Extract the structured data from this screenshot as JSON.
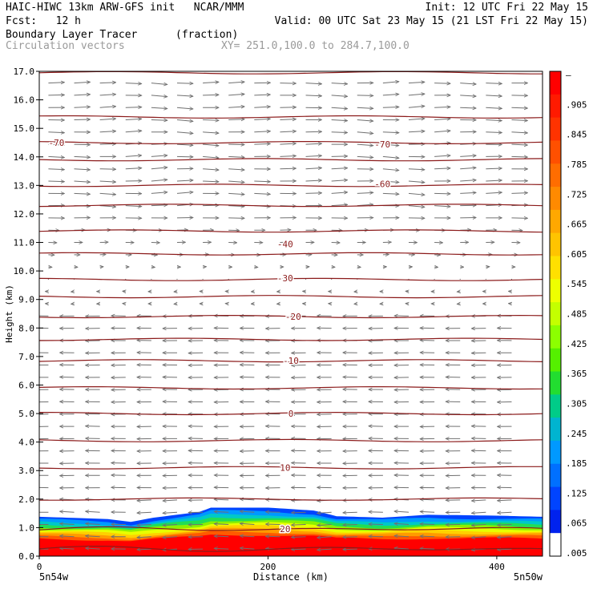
{
  "header": {
    "line1_left": "HAIC-HIWC 13km ARW-GFS init   NCAR/MMM",
    "line1_right": "Init: 12 UTC Fri 22 May 15",
    "line2_left": "Fcst:   12 h",
    "line2_right": "Valid: 00 UTC Sat 23 May 15 (21 LST Fri 22 May 15)",
    "field_name": "Boundary Layer Tracer",
    "field_units": "(fraction)",
    "vector_label": "Circulation vectors",
    "xsec_label": "XY= 251.0,100.0 to 284.7,100.0"
  },
  "chart_data": {
    "type": "heatmap",
    "title": "Boundary Layer Tracer",
    "ylabel": "Height (km)",
    "xlabel": "Distance (km)",
    "ylim": [
      0.0,
      17.0
    ],
    "yticks": [
      "0.0",
      "1.0",
      "2.0",
      "3.0",
      "4.0",
      "5.0",
      "6.0",
      "7.0",
      "8.0",
      "9.0",
      "10.0",
      "11.0",
      "12.0",
      "13.0",
      "14.0",
      "15.0",
      "16.0",
      "17.0"
    ],
    "xlim": [
      0,
      440
    ],
    "xticks": [
      {
        "value": 0,
        "label": "0"
      },
      {
        "value": 200,
        "label": "200"
      },
      {
        "value": 400,
        "label": "400"
      }
    ],
    "x_endpoint_labels": [
      "5n54w",
      "5n50w"
    ],
    "colorbar": {
      "labels": [
        "–",
        ".905",
        ".845",
        ".785",
        ".725",
        ".665",
        ".605",
        ".545",
        ".485",
        ".425",
        ".365",
        ".305",
        ".245",
        ".185",
        ".125",
        ".065",
        ".005"
      ],
      "colors": [
        "#ff0000",
        "#ff1a00",
        "#ff3300",
        "#ff5000",
        "#ff6d00",
        "#ff8a00",
        "#ffa800",
        "#ffc400",
        "#ffe000",
        "#eeff00",
        "#c4ff00",
        "#8cff00",
        "#55f000",
        "#22dd30",
        "#00cc88",
        "#00b4d0",
        "#0099ff",
        "#0070ff",
        "#0044ff",
        "#0022ee",
        "#ffffff"
      ]
    },
    "boundary_layer_top_km": [
      {
        "x": 0,
        "y": 1.38
      },
      {
        "x": 60,
        "y": 1.3
      },
      {
        "x": 80,
        "y": 1.2
      },
      {
        "x": 100,
        "y": 1.35
      },
      {
        "x": 140,
        "y": 1.55
      },
      {
        "x": 150,
        "y": 1.7
      },
      {
        "x": 200,
        "y": 1.7
      },
      {
        "x": 240,
        "y": 1.6
      },
      {
        "x": 260,
        "y": 1.4
      },
      {
        "x": 300,
        "y": 1.35
      },
      {
        "x": 340,
        "y": 1.45
      },
      {
        "x": 400,
        "y": 1.42
      },
      {
        "x": 440,
        "y": 1.38
      }
    ],
    "temperature_contour_labels": [
      {
        "label": "-70",
        "x": 15,
        "y": 14.5
      },
      {
        "label": "-70",
        "x": 300,
        "y": 14.45
      },
      {
        "label": "-60",
        "x": 300,
        "y": 13.05
      },
      {
        "label": "-40",
        "x": 215,
        "y": 10.95
      },
      {
        "label": "-30",
        "x": 215,
        "y": 9.75
      },
      {
        "label": "-20",
        "x": 222,
        "y": 8.4
      },
      {
        "label": "-10",
        "x": 220,
        "y": 6.85
      },
      {
        "label": "0",
        "x": 220,
        "y": 5.0
      },
      {
        "label": "10",
        "x": 215,
        "y": 3.1
      },
      {
        "label": "20",
        "x": 215,
        "y": 0.95
      }
    ],
    "isotherm_levels_km": [
      16.95,
      15.4,
      14.5,
      13.9,
      13.0,
      12.3,
      11.4,
      10.6,
      9.7,
      9.1,
      8.4,
      7.6,
      6.85,
      5.9,
      5.0,
      4.05,
      3.1,
      2.0,
      0.95,
      0.25
    ]
  }
}
